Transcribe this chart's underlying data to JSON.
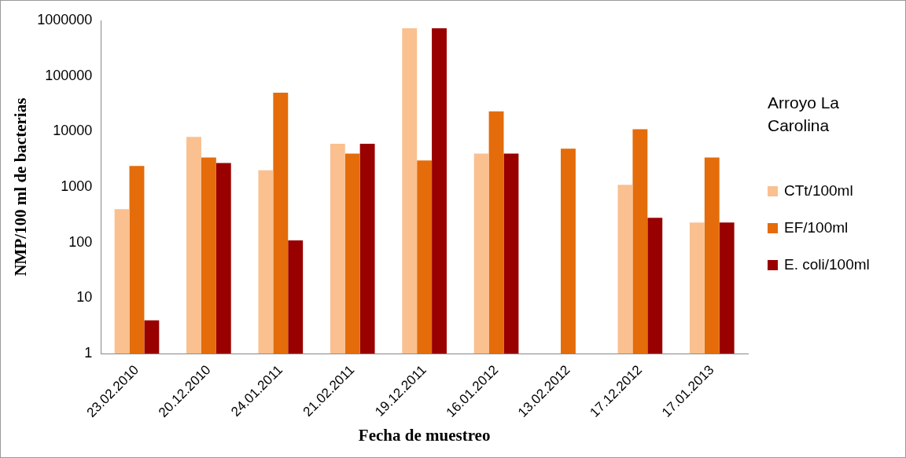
{
  "chart_data": {
    "type": "bar",
    "xlabel": "Fecha de muestreo",
    "ylabel": "NMP/100 ml de bacterias",
    "legend_title": "Arroyo La Carolina",
    "categories": [
      "23.02.2010",
      "20.12.2010",
      "24.01.2011",
      "21.02.2011",
      "19.12.2011",
      "16.01.2012",
      "13.02.2012",
      "17.12.2012",
      "17.01.2013"
    ],
    "series": [
      {
        "name": "CTt/100ml",
        "color": "#fac090",
        "values": [
          400,
          8000,
          2000,
          6000,
          720000,
          4000,
          null,
          1100,
          230
        ]
      },
      {
        "name": "EF/100ml",
        "color": "#e46c0a",
        "values": [
          2400,
          3400,
          50000,
          4000,
          3000,
          23000,
          4900,
          11000,
          3400
        ]
      },
      {
        "name": "E. coli/100ml",
        "color": "#990000",
        "values": [
          4,
          2700,
          110,
          6000,
          720000,
          4000,
          null,
          280,
          230
        ]
      }
    ],
    "log": "y",
    "ylim": [
      1,
      1000000
    ],
    "yticks": [
      1,
      10,
      100,
      1000,
      10000,
      100000,
      1000000
    ],
    "grid": false,
    "legend": "right"
  }
}
